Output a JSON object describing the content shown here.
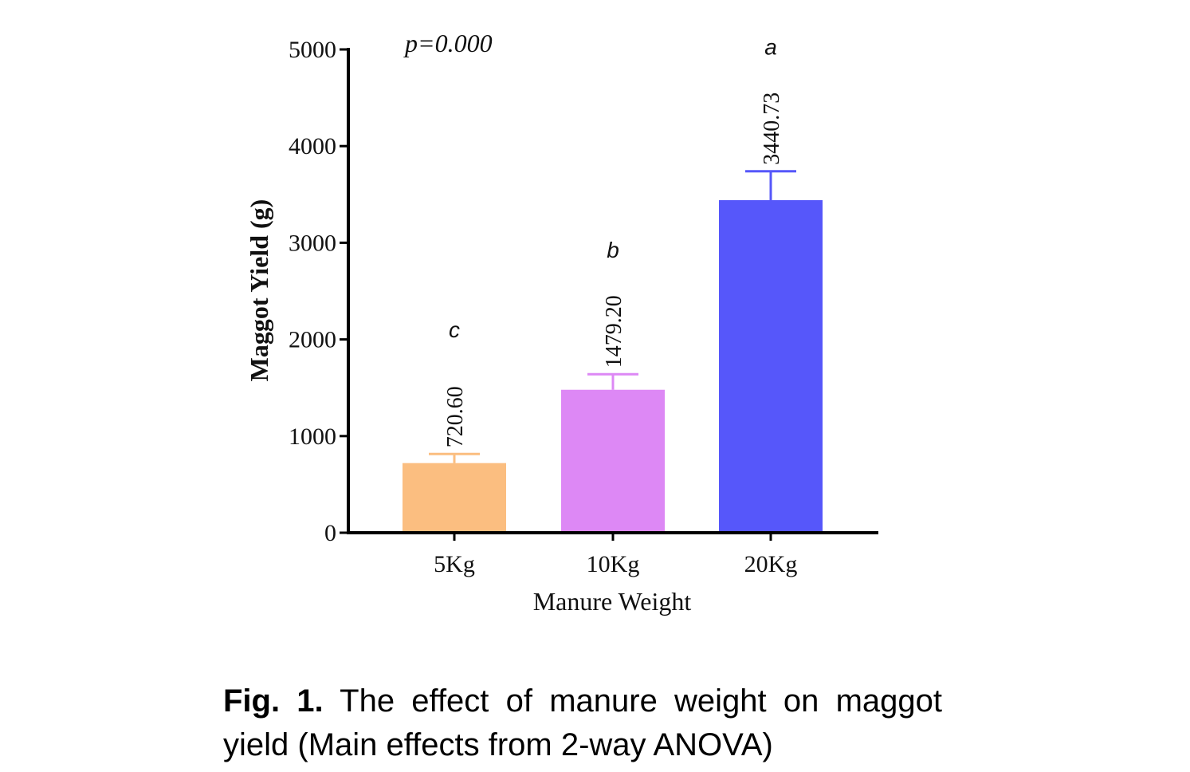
{
  "chart_data": {
    "type": "bar",
    "categories": [
      "5Kg",
      "10Kg",
      "20Kg"
    ],
    "values": [
      720.6,
      1479.2,
      3440.73
    ],
    "value_labels": [
      "720.60",
      "1479.20",
      "3440.73"
    ],
    "error_upper": [
      815,
      1640,
      3740
    ],
    "significance_letters": [
      "c",
      "b",
      "a"
    ],
    "colors": [
      "#FBBE80",
      "#DD88F5",
      "#5657FA"
    ],
    "annotation": "p=0.000",
    "xlabel": "Manure Weight",
    "ylabel": "Maggot Yield (g)",
    "ylim": [
      0,
      5000
    ],
    "yticks": [
      0,
      1000,
      2000,
      3000,
      4000,
      5000
    ],
    "grid": false
  },
  "caption": {
    "label": "Fig. 1.",
    "text": " The effect of manure weight on maggot yield (Main effects from 2-way ANOVA)"
  }
}
